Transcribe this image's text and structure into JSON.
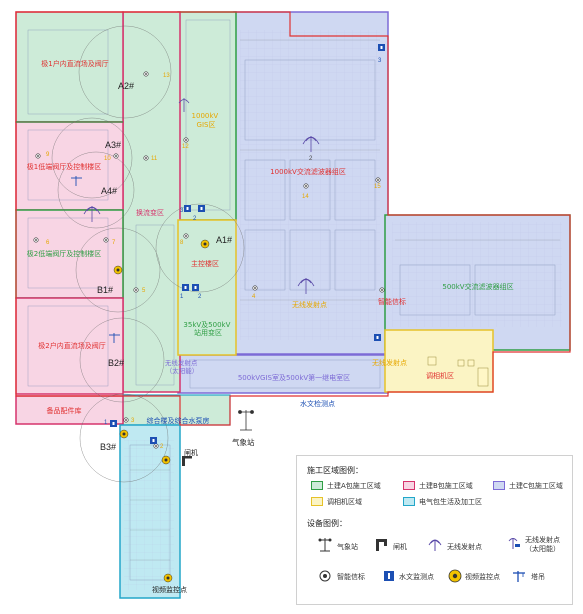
{
  "zones": {
    "north_converter_hall": "极1户内直流场及阀厅",
    "valve_hall_1": "极1低端阀厅及控制楼区",
    "valve_hall_2": "极2低端阀厅及控制楼区",
    "south_converter_hall": "极2户内直流场及阀厅",
    "converter_transformer_area": "换流变区",
    "gis_1000kv": "1000kV\nGIS区",
    "main_control": "主控楼区",
    "substation_35kv": "35kV及500kV\n站用变区",
    "filter_1000kv": "1000kV交流滤波器组区",
    "filter_500kv": "500kV交流滤波器组区",
    "gis_500kv": "500kVGIS室及500kV第一继电室区",
    "camera_area": "调相机区",
    "spare_parts": "备品配件库",
    "comprehensive": "综合楼及综合水泵房"
  },
  "annotations": {
    "a1": "A1#",
    "a2": "A2#",
    "a3": "A3#",
    "a4": "A4#",
    "b1": "B1#",
    "b2": "B2#",
    "b3": "B3#",
    "wireless_1": "无线发射点",
    "wireless_2": "无线发射点",
    "wireless_solar": "无线发射点\n（太阳能）",
    "smart_sign": "智能信标",
    "hydro": "水文检测点",
    "weather": "气象站",
    "gate": "闸机",
    "video": "视频监控点"
  },
  "markers": {
    "hydro_top": "3",
    "hydro_a": "3",
    "hydro_b": "2",
    "hydro_c": "1",
    "hydro_d": "2",
    "hydro_e": "2",
    "hydro_f": "1",
    "hydro_g": "1",
    "hydro_h": "3",
    "beacon_1": "1",
    "beacon_2": "2",
    "beacon_3": "3",
    "beacon_4": "4",
    "beacon_5": "5",
    "beacon_6": "6",
    "beacon_7": "7",
    "beacon_8": "8",
    "beacon_9": "9",
    "beacon_10": "10",
    "beacon_11": "11",
    "beacon_12": "12",
    "beacon_13": "13",
    "beacon_14": "14",
    "beacon_15": "15",
    "beacon_4b": "4",
    "beacon_2b": "2",
    "beacon_3b": "3",
    "wireless_icon_2": "2"
  },
  "legend": {
    "construction_title": "施工区域图例：",
    "zone_a": "土建A包施工区域",
    "zone_b": "土建B包施工区域",
    "zone_c": "土建C包施工区域",
    "camera_zone": "调相机区域",
    "electrical_zone": "电气包生活及加工区",
    "equipment_title": "设备图例：",
    "weather": "气象站",
    "gate": "闸机",
    "wireless": "无线发射点",
    "wireless_solar": "无线发射点\n（太阳能）",
    "smart_beacon": "智能信标",
    "hydro": "水文监测点",
    "video": "视频监控点",
    "tower_crane": "塔吊"
  },
  "colors": {
    "zone_a_fill": "#cdebd8",
    "zone_a_border": "#2f9e44",
    "zone_b_fill": "#f8d5e4",
    "zone_b_border": "#d6336c",
    "zone_c_fill": "#cfd8f2",
    "zone_c_border": "#7d6bd6",
    "camera_fill": "#fbf4c4",
    "camera_border": "#e6c229",
    "electrical_fill": "#bfe9f2",
    "electrical_border": "#22a6c9",
    "site_border": "#e03131",
    "label_red": "#e03131",
    "label_green": "#2f9e44",
    "label_blue": "#1c4fb3"
  }
}
